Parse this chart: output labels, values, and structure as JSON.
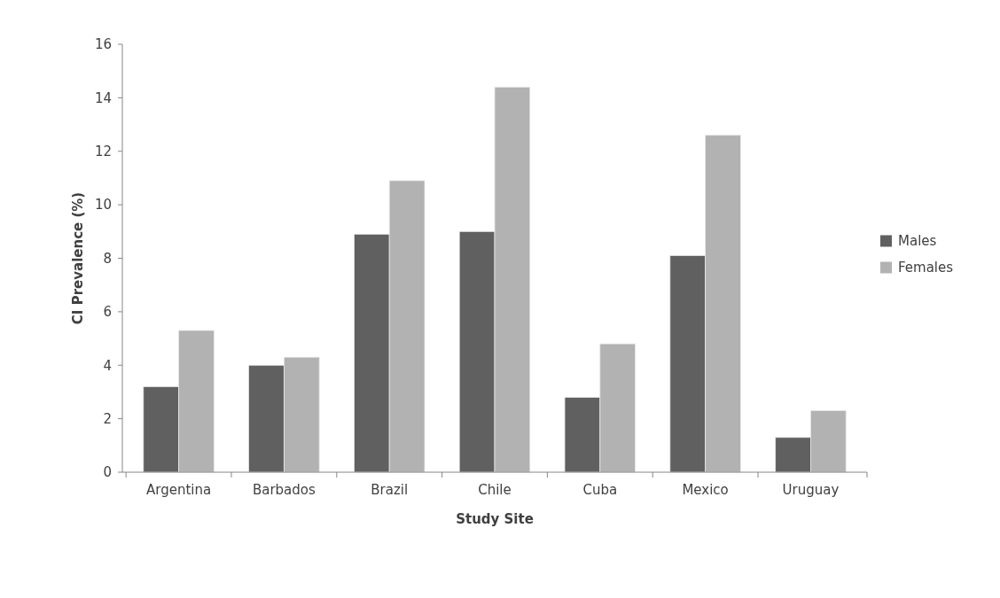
{
  "chart_data": {
    "type": "bar",
    "xlabel": "Study Site",
    "ylabel": "CI Prevalence (%)",
    "categories": [
      "Argentina",
      "Barbados",
      "Brazil",
      "Chile",
      "Cuba",
      "Mexico",
      "Uruguay"
    ],
    "series": [
      {
        "name": "Males",
        "color": "#606060",
        "values": [
          3.2,
          4.0,
          8.9,
          9.0,
          2.8,
          8.1,
          1.3
        ]
      },
      {
        "name": "Females",
        "color": "#b2b2b2",
        "values": [
          5.3,
          4.3,
          10.9,
          14.4,
          4.8,
          12.6,
          2.3
        ]
      }
    ],
    "ylim": [
      0,
      16
    ],
    "yticks": [
      0,
      2,
      4,
      6,
      8,
      10,
      12,
      14,
      16
    ],
    "grid": false,
    "legend": "right"
  }
}
